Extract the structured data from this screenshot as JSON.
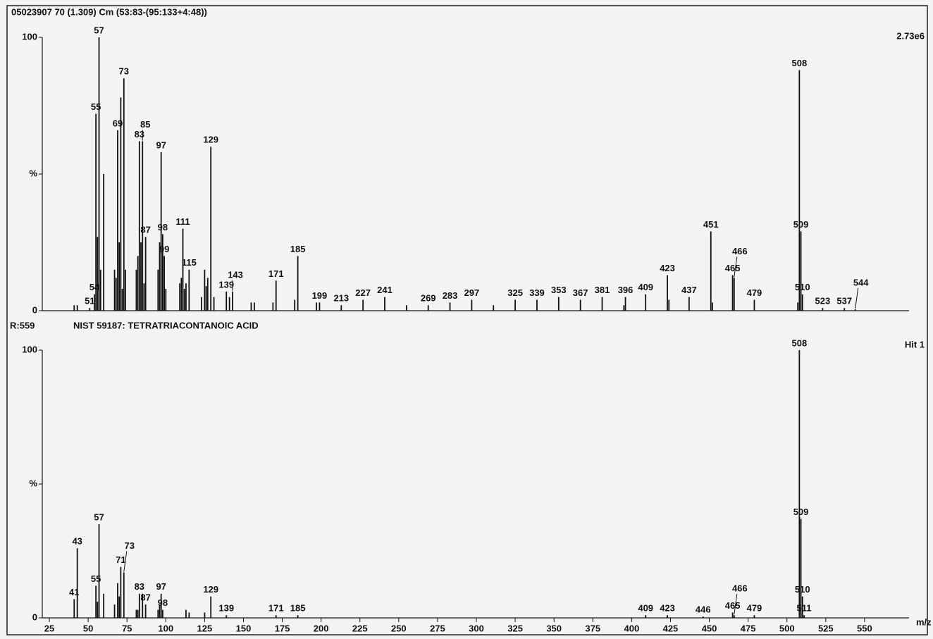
{
  "chart_data": [
    {
      "type": "bar",
      "title": "05023907 70 (1.309) Cm (53:83-(95:133+4:48))",
      "annotation": "2.73e6",
      "xlim": [
        20,
        575
      ],
      "ylim": [
        0,
        100
      ],
      "yticks": [
        0,
        {
          "value": 50,
          "label": "%"
        },
        100
      ],
      "series": [
        {
          "color": "#111111",
          "labeled": true,
          "x": [
            51,
            54,
            55,
            57,
            69,
            73,
            83,
            85,
            87,
            97,
            98,
            99,
            111,
            115,
            129,
            139,
            143,
            171,
            185,
            199,
            213,
            227,
            241,
            269,
            283,
            297,
            325,
            339,
            353,
            367,
            381,
            396,
            409,
            423,
            437,
            451,
            465,
            466,
            479,
            508,
            509,
            510,
            523,
            537,
            544
          ],
          "values": [
            1,
            6,
            72,
            100,
            66,
            85,
            62,
            62,
            27,
            58,
            28,
            20,
            30,
            15,
            60,
            7,
            7,
            11,
            20,
            3,
            2,
            4,
            5,
            2,
            3,
            4,
            4,
            4,
            5,
            4,
            5,
            5,
            6,
            13,
            5,
            29,
            13,
            12,
            4,
            88,
            29,
            6,
            1,
            1,
            0.5
          ]
        },
        {
          "color": "#111111",
          "labeled": false,
          "x": [
            41,
            43,
            56,
            58,
            60,
            67,
            68,
            70,
            71,
            72,
            74,
            81,
            82,
            84,
            86,
            95,
            96,
            100,
            109,
            110,
            112,
            113,
            123,
            125,
            126,
            127,
            131,
            141,
            155,
            157,
            169,
            183,
            197,
            255,
            311,
            395,
            424,
            452,
            507
          ],
          "values": [
            2,
            2,
            27,
            15,
            50,
            15,
            12,
            25,
            78,
            8,
            15,
            15,
            20,
            25,
            10,
            15,
            25,
            8,
            10,
            12,
            8,
            10,
            5,
            15,
            9,
            12,
            5,
            5,
            3,
            3,
            3,
            4,
            3,
            2,
            2,
            2,
            4,
            3,
            3
          ]
        }
      ]
    },
    {
      "type": "bar",
      "subtitle": "R:559",
      "title": "NIST  59187: TETRATRIACONTANOIC ACID",
      "annotation": "Hit 1",
      "xlabel": "m/z",
      "xlim": [
        20,
        575
      ],
      "ylim": [
        0,
        100
      ],
      "xticks": [
        25,
        50,
        75,
        100,
        125,
        150,
        175,
        200,
        225,
        250,
        275,
        300,
        325,
        350,
        375,
        400,
        425,
        450,
        475,
        500,
        525,
        550
      ],
      "yticks": [
        0,
        {
          "value": 50,
          "label": "%"
        },
        100
      ],
      "series": [
        {
          "color": "#111111",
          "labeled": true,
          "x": [
            41,
            43,
            55,
            57,
            71,
            73,
            83,
            87,
            97,
            98,
            129,
            139,
            171,
            185,
            409,
            423,
            446,
            465,
            466,
            479,
            508,
            509,
            510,
            511
          ],
          "values": [
            7,
            26,
            12,
            35,
            19,
            17,
            9,
            5,
            9,
            3,
            8,
            1,
            1,
            1,
            1,
            1,
            0.5,
            2,
            1,
            1,
            100,
            37,
            8,
            1
          ]
        },
        {
          "color": "#111111",
          "labeled": false,
          "x": [
            56,
            60,
            67,
            69,
            70,
            81,
            82,
            85,
            95,
            96,
            113,
            115,
            125
          ],
          "values": [
            6,
            9,
            5,
            13,
            8,
            3,
            3,
            9,
            3,
            5,
            3,
            2,
            2
          ]
        }
      ]
    }
  ]
}
